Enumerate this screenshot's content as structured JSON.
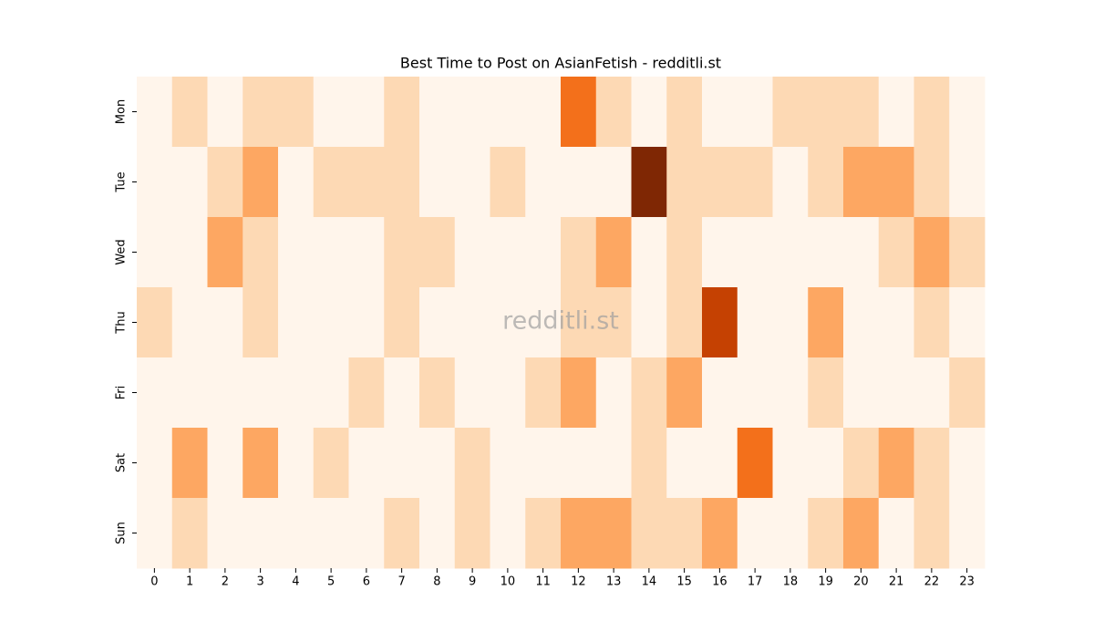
{
  "chart_data": {
    "type": "heatmap",
    "title": "Best Time to Post on AsianFetish - redditli.st",
    "watermark": "redditli.st",
    "x": [
      0,
      1,
      2,
      3,
      4,
      5,
      6,
      7,
      8,
      9,
      10,
      11,
      12,
      13,
      14,
      15,
      16,
      17,
      18,
      19,
      20,
      21,
      22,
      23
    ],
    "categories": [
      "Mon",
      "Tue",
      "Wed",
      "Thu",
      "Fri",
      "Sat",
      "Sun"
    ],
    "values": [
      [
        0,
        1,
        0,
        1,
        1,
        0,
        0,
        1,
        0,
        0,
        0,
        0,
        3,
        1,
        0,
        1,
        0,
        0,
        1,
        1,
        1,
        0,
        1,
        0
      ],
      [
        0,
        0,
        1,
        2,
        0,
        1,
        1,
        1,
        0,
        0,
        1,
        0,
        0,
        0,
        5,
        1,
        1,
        1,
        0,
        1,
        2,
        2,
        1,
        0
      ],
      [
        0,
        0,
        2,
        1,
        0,
        0,
        0,
        1,
        1,
        0,
        0,
        0,
        1,
        2,
        0,
        1,
        0,
        0,
        0,
        0,
        0,
        1,
        2,
        1
      ],
      [
        1,
        0,
        0,
        1,
        0,
        0,
        0,
        1,
        0,
        0,
        0,
        0,
        1,
        1,
        0,
        1,
        4,
        0,
        0,
        2,
        0,
        0,
        1,
        0
      ],
      [
        0,
        0,
        0,
        0,
        0,
        0,
        1,
        0,
        1,
        0,
        0,
        1,
        2,
        0,
        1,
        2,
        0,
        0,
        0,
        1,
        0,
        0,
        0,
        1
      ],
      [
        0,
        2,
        0,
        2,
        0,
        1,
        0,
        0,
        0,
        1,
        0,
        0,
        0,
        0,
        1,
        0,
        0,
        3,
        0,
        0,
        1,
        2,
        1,
        0
      ],
      [
        0,
        1,
        0,
        0,
        0,
        0,
        0,
        1,
        0,
        1,
        0,
        1,
        2,
        2,
        1,
        1,
        2,
        0,
        0,
        1,
        2,
        0,
        1,
        0
      ]
    ],
    "zlim": [
      0,
      5
    ],
    "colorscale": [
      "#fff5eb",
      "#fdd9b4",
      "#fda762",
      "#f3701b",
      "#c54102",
      "#7f2704"
    ]
  }
}
